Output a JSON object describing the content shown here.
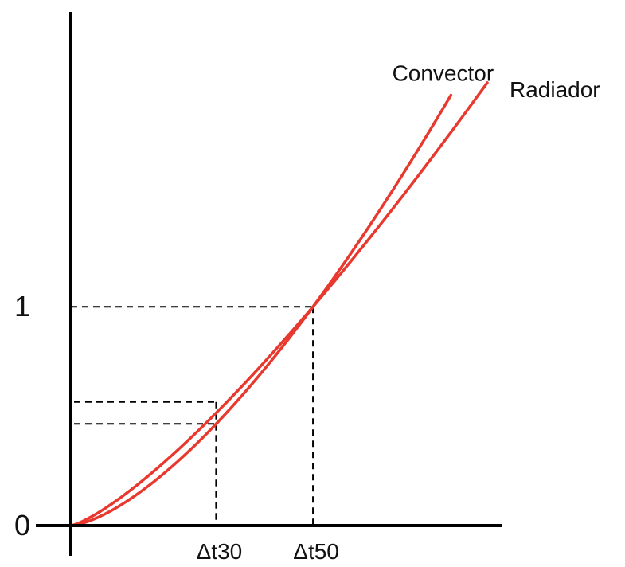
{
  "chart_data": {
    "type": "line",
    "title": "",
    "xlabel": "",
    "ylabel": "",
    "y_ticks": [
      {
        "label": "0",
        "value": 0
      },
      {
        "label": "1",
        "value": 1
      }
    ],
    "x_ticks": [
      {
        "label": "Δt30",
        "value": 30
      },
      {
        "label": "Δt50",
        "value": 50
      }
    ],
    "xlim": [
      0,
      86
    ],
    "ylim": [
      0,
      2.22
    ],
    "series": [
      {
        "name": "Convector",
        "color": "#e8392f",
        "exponent": 1.5,
        "x_end": 78.5,
        "label_position": "top"
      },
      {
        "name": "Radiador",
        "color": "#e8392f",
        "exponent": 1.3,
        "x_end": 86,
        "label_position": "right"
      }
    ],
    "reference_lines": [
      {
        "x": 50,
        "y": 1
      },
      {
        "x": 30,
        "y": 0.565
      },
      {
        "x": 30,
        "y": 0.465
      }
    ],
    "grid": false,
    "legend": "inline labels"
  }
}
